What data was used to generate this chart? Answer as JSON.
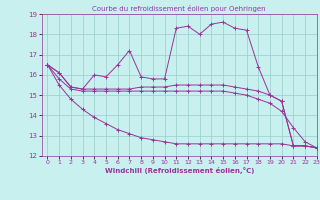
{
  "title": "Courbe du refroidissement éolien pour Oehringen",
  "xlabel": "Windchill (Refroidissement éolien,°C)",
  "xlim": [
    -0.5,
    23
  ],
  "ylim": [
    12,
    19
  ],
  "yticks": [
    12,
    13,
    14,
    15,
    16,
    17,
    18,
    19
  ],
  "xticks": [
    0,
    1,
    2,
    3,
    4,
    5,
    6,
    7,
    8,
    9,
    10,
    11,
    12,
    13,
    14,
    15,
    16,
    17,
    18,
    19,
    20,
    21,
    22,
    23
  ],
  "bg_color": "#c8f0ee",
  "line_color": "#993399",
  "grid_color": "#99cccc",
  "series": {
    "line1": [
      16.5,
      16.1,
      15.4,
      15.3,
      16.0,
      15.9,
      16.5,
      17.2,
      15.9,
      15.8,
      15.8,
      18.3,
      18.4,
      18.0,
      18.5,
      18.6,
      18.3,
      18.2,
      16.4,
      15.0,
      14.7,
      12.5,
      12.5,
      12.4
    ],
    "line2": [
      16.5,
      16.1,
      15.4,
      15.3,
      15.3,
      15.3,
      15.3,
      15.3,
      15.4,
      15.4,
      15.4,
      15.5,
      15.5,
      15.5,
      15.5,
      15.5,
      15.4,
      15.3,
      15.2,
      15.0,
      14.7,
      12.5,
      12.5,
      12.4
    ],
    "line3": [
      16.5,
      15.8,
      15.3,
      15.2,
      15.2,
      15.2,
      15.2,
      15.2,
      15.2,
      15.2,
      15.2,
      15.2,
      15.2,
      15.2,
      15.2,
      15.2,
      15.1,
      15.0,
      14.8,
      14.6,
      14.2,
      13.4,
      12.7,
      12.4
    ],
    "line4": [
      16.5,
      15.5,
      14.8,
      14.3,
      13.9,
      13.6,
      13.3,
      13.1,
      12.9,
      12.8,
      12.7,
      12.6,
      12.6,
      12.6,
      12.6,
      12.6,
      12.6,
      12.6,
      12.6,
      12.6,
      12.6,
      12.5,
      12.5,
      12.4
    ]
  }
}
